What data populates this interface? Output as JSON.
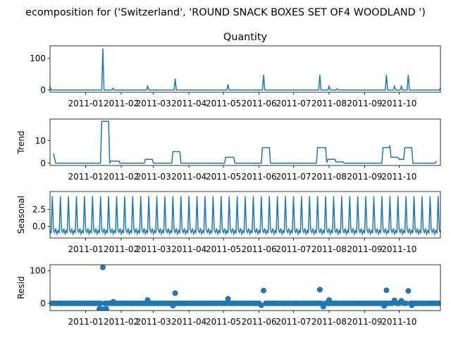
{
  "figure": {
    "title": "ecomposition for ('Switzerland', 'ROUND SNACK BOXES SET OF4 WOODLAND ')"
  },
  "colors": {
    "series": "#1f77b4",
    "axis": "#000000",
    "background": "#ffffff"
  },
  "chart_data": [
    {
      "type": "line",
      "title": "Quantity",
      "ylabel": "",
      "xlim": [
        "2010-12-01",
        "2011-11-06"
      ],
      "ylim": [
        -7,
        140
      ],
      "yticks": [
        0,
        100
      ],
      "ytick_labels": [
        "0",
        "100"
      ],
      "xticks": [
        "2011-01-01",
        "2011-02-01",
        "2011-03-01",
        "2011-04-01",
        "2011-05-01",
        "2011-06-01",
        "2011-07-01",
        "2011-08-01",
        "2011-09-01",
        "2011-10-01"
      ],
      "xtick_labels": [
        "2011-01",
        "2011-02",
        "2011-03",
        "2011-04",
        "2011-05",
        "2011-06",
        "2011-07",
        "2011-08",
        "2011-09",
        "2011-10"
      ],
      "baseline": 0,
      "spikes": [
        {
          "x": "2010-12-01",
          "y": 12
        },
        {
          "x": "2011-01-16",
          "y": 132
        },
        {
          "x": "2011-01-25",
          "y": 6
        },
        {
          "x": "2011-02-24",
          "y": 12
        },
        {
          "x": "2011-03-20",
          "y": 36
        },
        {
          "x": "2011-05-05",
          "y": 18
        },
        {
          "x": "2011-06-05",
          "y": 48
        },
        {
          "x": "2011-07-24",
          "y": 48
        },
        {
          "x": "2011-08-01",
          "y": 12
        },
        {
          "x": "2011-08-08",
          "y": 4
        },
        {
          "x": "2011-09-20",
          "y": 48
        },
        {
          "x": "2011-09-27",
          "y": 12
        },
        {
          "x": "2011-10-03",
          "y": 12
        },
        {
          "x": "2011-10-09",
          "y": 48
        },
        {
          "x": "2011-11-06",
          "y": 6
        }
      ]
    },
    {
      "type": "line",
      "title": "",
      "ylabel": "Trend",
      "xlim": [
        "2010-12-01",
        "2011-11-06"
      ],
      "ylim": [
        -1,
        19.5
      ],
      "yticks": [
        0,
        10
      ],
      "ytick_labels": [
        "0",
        "10"
      ],
      "xticks": [
        "2011-01-01",
        "2011-02-01",
        "2011-03-01",
        "2011-04-01",
        "2011-05-01",
        "2011-06-01",
        "2011-07-01",
        "2011-08-01",
        "2011-09-01",
        "2011-10-01"
      ],
      "xtick_labels": [
        "2011-01",
        "2011-02",
        "2011-03",
        "2011-04",
        "2011-05",
        "2011-06",
        "2011-07",
        "2011-08",
        "2011-09",
        "2011-10"
      ],
      "points": [
        [
          "2010-12-04",
          4.3
        ],
        [
          "2010-12-06",
          0
        ],
        [
          "2011-01-14",
          0
        ],
        [
          "2011-01-15",
          18.5
        ],
        [
          "2011-01-21",
          18.5
        ],
        [
          "2011-01-22",
          0.2
        ],
        [
          "2011-01-23",
          0.9
        ],
        [
          "2011-01-30",
          0.9
        ],
        [
          "2011-01-31",
          0
        ],
        [
          "2011-02-21",
          0
        ],
        [
          "2011-02-22",
          1.7
        ],
        [
          "2011-02-28",
          1.7
        ],
        [
          "2011-03-01",
          0
        ],
        [
          "2011-03-17",
          0
        ],
        [
          "2011-03-18",
          5.1
        ],
        [
          "2011-03-24",
          5.1
        ],
        [
          "2011-03-25",
          0
        ],
        [
          "2011-05-02",
          0
        ],
        [
          "2011-05-03",
          2.6
        ],
        [
          "2011-05-10",
          2.6
        ],
        [
          "2011-05-11",
          0
        ],
        [
          "2011-06-03",
          0
        ],
        [
          "2011-06-04",
          6.9
        ],
        [
          "2011-06-10",
          6.9
        ],
        [
          "2011-06-11",
          0
        ],
        [
          "2011-07-21",
          0
        ],
        [
          "2011-07-22",
          6.9
        ],
        [
          "2011-07-29",
          6.9
        ],
        [
          "2011-07-30",
          0.2
        ],
        [
          "2011-07-31",
          1.7
        ],
        [
          "2011-08-06",
          1.7
        ],
        [
          "2011-08-07",
          0.6
        ],
        [
          "2011-08-13",
          0.6
        ],
        [
          "2011-08-14",
          0
        ],
        [
          "2011-09-16",
          0
        ],
        [
          "2011-09-17",
          6.9
        ],
        [
          "2011-09-22",
          6.9
        ],
        [
          "2011-09-23",
          7.6
        ],
        [
          "2011-09-24",
          2.6
        ],
        [
          "2011-09-30",
          2.6
        ],
        [
          "2011-10-01",
          1.7
        ],
        [
          "2011-10-05",
          1.7
        ],
        [
          "2011-10-06",
          6.9
        ],
        [
          "2011-10-12",
          6.9
        ],
        [
          "2011-10-13",
          0
        ],
        [
          "2011-11-01",
          0
        ],
        [
          "2011-11-03",
          0.9
        ]
      ]
    },
    {
      "type": "line",
      "title": "",
      "ylabel": "Seasonal",
      "xlim": [
        "2010-12-01",
        "2011-11-06"
      ],
      "ylim": [
        -1.7,
        5.1
      ],
      "yticks": [
        0,
        2.5
      ],
      "ytick_labels": [
        "0.0",
        "2.5"
      ],
      "xticks": [
        "2011-01-01",
        "2011-02-01",
        "2011-03-01",
        "2011-04-01",
        "2011-05-01",
        "2011-06-01",
        "2011-07-01",
        "2011-08-01",
        "2011-09-01",
        "2011-10-01"
      ],
      "xtick_labels": [
        "2011-01",
        "2011-02",
        "2011-03",
        "2011-04",
        "2011-05",
        "2011-06",
        "2011-07",
        "2011-08",
        "2011-09",
        "2011-10"
      ],
      "period_days": 7,
      "start": "2010-12-01",
      "end": "2011-11-06",
      "weekly_pattern": [
        -0.6,
        -1.0,
        4.4,
        -0.5,
        -0.9,
        -0.3,
        -1.1
      ]
    },
    {
      "type": "scatter",
      "title": "",
      "ylabel": "Resid",
      "xlim": [
        "2010-12-01",
        "2011-11-06"
      ],
      "ylim": [
        -22,
        118
      ],
      "yticks": [
        0,
        100
      ],
      "ytick_labels": [
        "0",
        "100"
      ],
      "xticks": [
        "2011-01-01",
        "2011-02-01",
        "2011-03-01",
        "2011-04-01",
        "2011-05-01",
        "2011-06-01",
        "2011-07-01",
        "2011-08-01",
        "2011-09-01",
        "2011-10-01"
      ],
      "xtick_labels": [
        "2011-01",
        "2011-02",
        "2011-03",
        "2011-04",
        "2011-05",
        "2011-06",
        "2011-07",
        "2011-08",
        "2011-09",
        "2011-10"
      ],
      "sample_every_days": 2,
      "baseline": 0,
      "outliers": [
        {
          "x": "2011-01-13",
          "y": -17
        },
        {
          "x": "2011-01-15",
          "y": -18
        },
        {
          "x": "2011-01-16",
          "y": 110
        },
        {
          "x": "2011-01-17",
          "y": -18
        },
        {
          "x": "2011-01-19",
          "y": -17
        },
        {
          "x": "2011-01-25",
          "y": 5
        },
        {
          "x": "2011-02-24",
          "y": 10
        },
        {
          "x": "2011-03-18",
          "y": -7
        },
        {
          "x": "2011-03-20",
          "y": 31
        },
        {
          "x": "2011-05-05",
          "y": 14
        },
        {
          "x": "2011-06-03",
          "y": -6
        },
        {
          "x": "2011-06-05",
          "y": 39
        },
        {
          "x": "2011-07-24",
          "y": 42
        },
        {
          "x": "2011-07-27",
          "y": -10
        },
        {
          "x": "2011-08-01",
          "y": 10
        },
        {
          "x": "2011-09-18",
          "y": -8
        },
        {
          "x": "2011-09-20",
          "y": 40
        },
        {
          "x": "2011-09-27",
          "y": 9
        },
        {
          "x": "2011-10-03",
          "y": 8
        },
        {
          "x": "2011-10-09",
          "y": 38
        },
        {
          "x": "2011-10-12",
          "y": -6
        }
      ]
    }
  ]
}
